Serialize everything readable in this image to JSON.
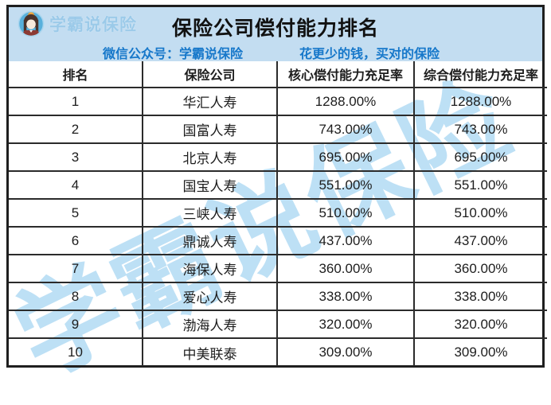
{
  "header": {
    "logo_text": "学霸说保险",
    "title": "保险公司偿付能力排名",
    "subtitle_left": "微信公众号：学霸说保险",
    "subtitle_right": "花更少的钱，买对的保险"
  },
  "watermark": {
    "text": "学霸说保险"
  },
  "colors": {
    "header_bg": "#c3ddf1",
    "accent_blue": "#1778ca",
    "watermark_blue": "rgba(134,198,236,0.55)",
    "border_dark": "#1f1f1f",
    "logo_text": "#9bcae9"
  },
  "chart_data": {
    "type": "table",
    "title": "保险公司偿付能力排名",
    "columns": [
      "排名",
      "保险公司",
      "核心偿付能力充足率",
      "综合偿付能力充足率"
    ],
    "rows": [
      [
        "1",
        "华汇人寿",
        "1288.00%",
        "1288.00%"
      ],
      [
        "2",
        "国富人寿",
        "743.00%",
        "743.00%"
      ],
      [
        "3",
        "北京人寿",
        "695.00%",
        "695.00%"
      ],
      [
        "4",
        "国宝人寿",
        "551.00%",
        "551.00%"
      ],
      [
        "5",
        "三峡人寿",
        "510.00%",
        "510.00%"
      ],
      [
        "6",
        "鼎诚人寿",
        "437.00%",
        "437.00%"
      ],
      [
        "7",
        "海保人寿",
        "360.00%",
        "360.00%"
      ],
      [
        "8",
        "爱心人寿",
        "338.00%",
        "338.00%"
      ],
      [
        "9",
        "渤海人寿",
        "320.00%",
        "320.00%"
      ],
      [
        "10",
        "中美联泰",
        "309.00%",
        "309.00%"
      ]
    ]
  }
}
